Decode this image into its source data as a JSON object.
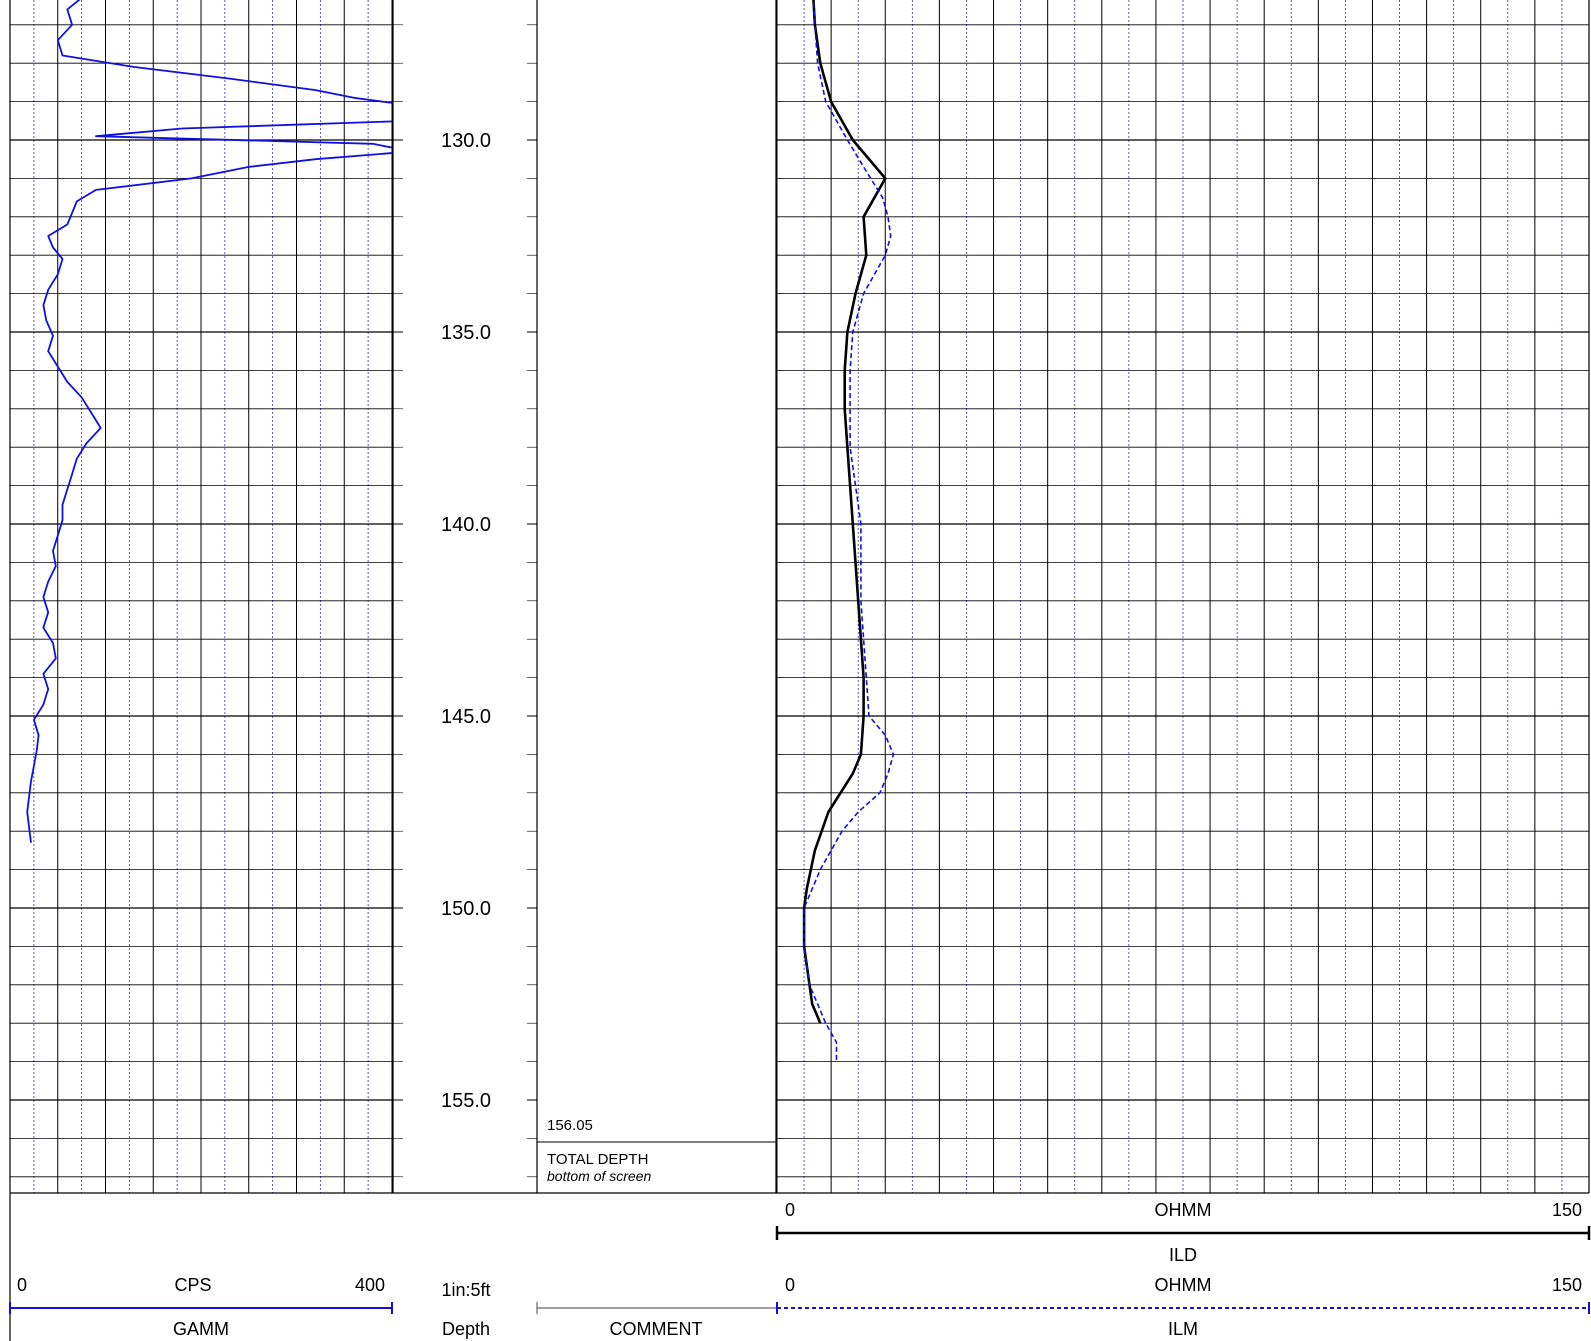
{
  "chart_data": {
    "type": "line",
    "depth_track": {
      "scale_label": "1in:5ft",
      "mnemonic": "Depth",
      "tick_labels": [
        "130.0",
        "135.0",
        "140.0",
        "145.0",
        "150.0",
        "155.0"
      ],
      "range": [
        125.8,
        158.2
      ]
    },
    "comment_track": {
      "mnemonic": "COMMENT",
      "annotation_depth": "156.05",
      "annotation_title": "TOTAL DEPTH",
      "annotation_subtitle": "bottom of screen"
    },
    "gamma_track": {
      "mnemonic": "GAMM",
      "unit": "CPS",
      "min_label": "0",
      "max_label": "400",
      "xlim": [
        0,
        400
      ],
      "color": "#1010e0",
      "depth": [
        125.8,
        126.2,
        126.6,
        127.0,
        127.4,
        127.8,
        128.1,
        128.4,
        128.7,
        128.9,
        129.1,
        129.3,
        129.5,
        129.7,
        129.9,
        130.1,
        130.3,
        130.5,
        130.7,
        131.0,
        131.3,
        131.6,
        131.9,
        132.2,
        132.5,
        132.8,
        133.1,
        133.5,
        133.9,
        134.3,
        134.7,
        135.1,
        135.5,
        135.9,
        136.3,
        136.7,
        137.1,
        137.5,
        137.9,
        138.3,
        138.7,
        139.1,
        139.5,
        139.9,
        140.3,
        140.7,
        141.1,
        141.5,
        141.9,
        142.3,
        142.7,
        143.1,
        143.5,
        143.9,
        144.3,
        144.7,
        145.1,
        145.5,
        145.9,
        146.3,
        146.7,
        147.1,
        147.5,
        147.9,
        148.3
      ],
      "values": [
        100,
        80,
        60,
        65,
        50,
        55,
        130,
        230,
        320,
        360,
        420,
        480,
        420,
        180,
        90,
        380,
        420,
        320,
        250,
        190,
        90,
        70,
        65,
        60,
        40,
        45,
        55,
        50,
        40,
        35,
        38,
        45,
        40,
        50,
        60,
        75,
        85,
        95,
        80,
        70,
        65,
        60,
        55,
        55,
        50,
        45,
        48,
        40,
        35,
        40,
        35,
        45,
        48,
        35,
        40,
        35,
        25,
        30,
        28,
        25,
        22,
        20,
        18,
        20,
        22
      ],
      "note": "Values >400 clip at the track boundary, as drawn."
    },
    "resistivity_track": {
      "unit": "OHMM",
      "xlim": [
        0,
        150
      ],
      "curves": [
        {
          "mnemonic": "ILD",
          "min_label": "0",
          "max_label": "150",
          "color": "#000000",
          "style": "solid",
          "depth": [
            125.8,
            127.0,
            128.0,
            129.0,
            130.0,
            131.0,
            132.0,
            133.0,
            134.0,
            135.0,
            136.0,
            137.0,
            138.0,
            139.0,
            140.0,
            141.0,
            142.0,
            143.0,
            144.0,
            145.0,
            146.0,
            146.5,
            147.5,
            148.5,
            149.5,
            150.0,
            150.5,
            151.0,
            152.0,
            152.5,
            153.0
          ],
          "values": [
            6.5,
            7,
            8,
            10,
            14,
            20,
            16,
            16.5,
            14.5,
            13,
            12.5,
            12.5,
            13,
            13.5,
            14,
            14.5,
            15,
            15.5,
            16,
            16,
            15.5,
            14,
            9.5,
            7,
            5.5,
            5,
            5,
            5,
            6,
            6.5,
            8
          ]
        },
        {
          "mnemonic": "ILM",
          "min_label": "0",
          "max_label": "150",
          "color": "#1010e0",
          "style": "dashed",
          "depth": [
            125.8,
            127.0,
            128.0,
            129.0,
            130.0,
            130.7,
            131.5,
            132.0,
            132.5,
            133.0,
            133.5,
            134.0,
            135.0,
            136.0,
            137.0,
            138.0,
            139.0,
            140.0,
            141.0,
            142.0,
            143.0,
            144.0,
            145.0,
            145.5,
            146.0,
            146.5,
            147.0,
            147.5,
            148.0,
            149.0,
            150.0,
            151.0,
            152.0,
            153.0,
            153.5,
            154.0
          ],
          "values": [
            6.5,
            7,
            7.5,
            9,
            13,
            16,
            19.5,
            20.5,
            21,
            20,
            18,
            16,
            14,
            13.5,
            13.5,
            13.5,
            14.5,
            15.5,
            15.5,
            15.5,
            16,
            16.5,
            17,
            20,
            21.5,
            20.5,
            19,
            15,
            12,
            8,
            5,
            5,
            6,
            9,
            11,
            11
          ]
        }
      ]
    }
  }
}
